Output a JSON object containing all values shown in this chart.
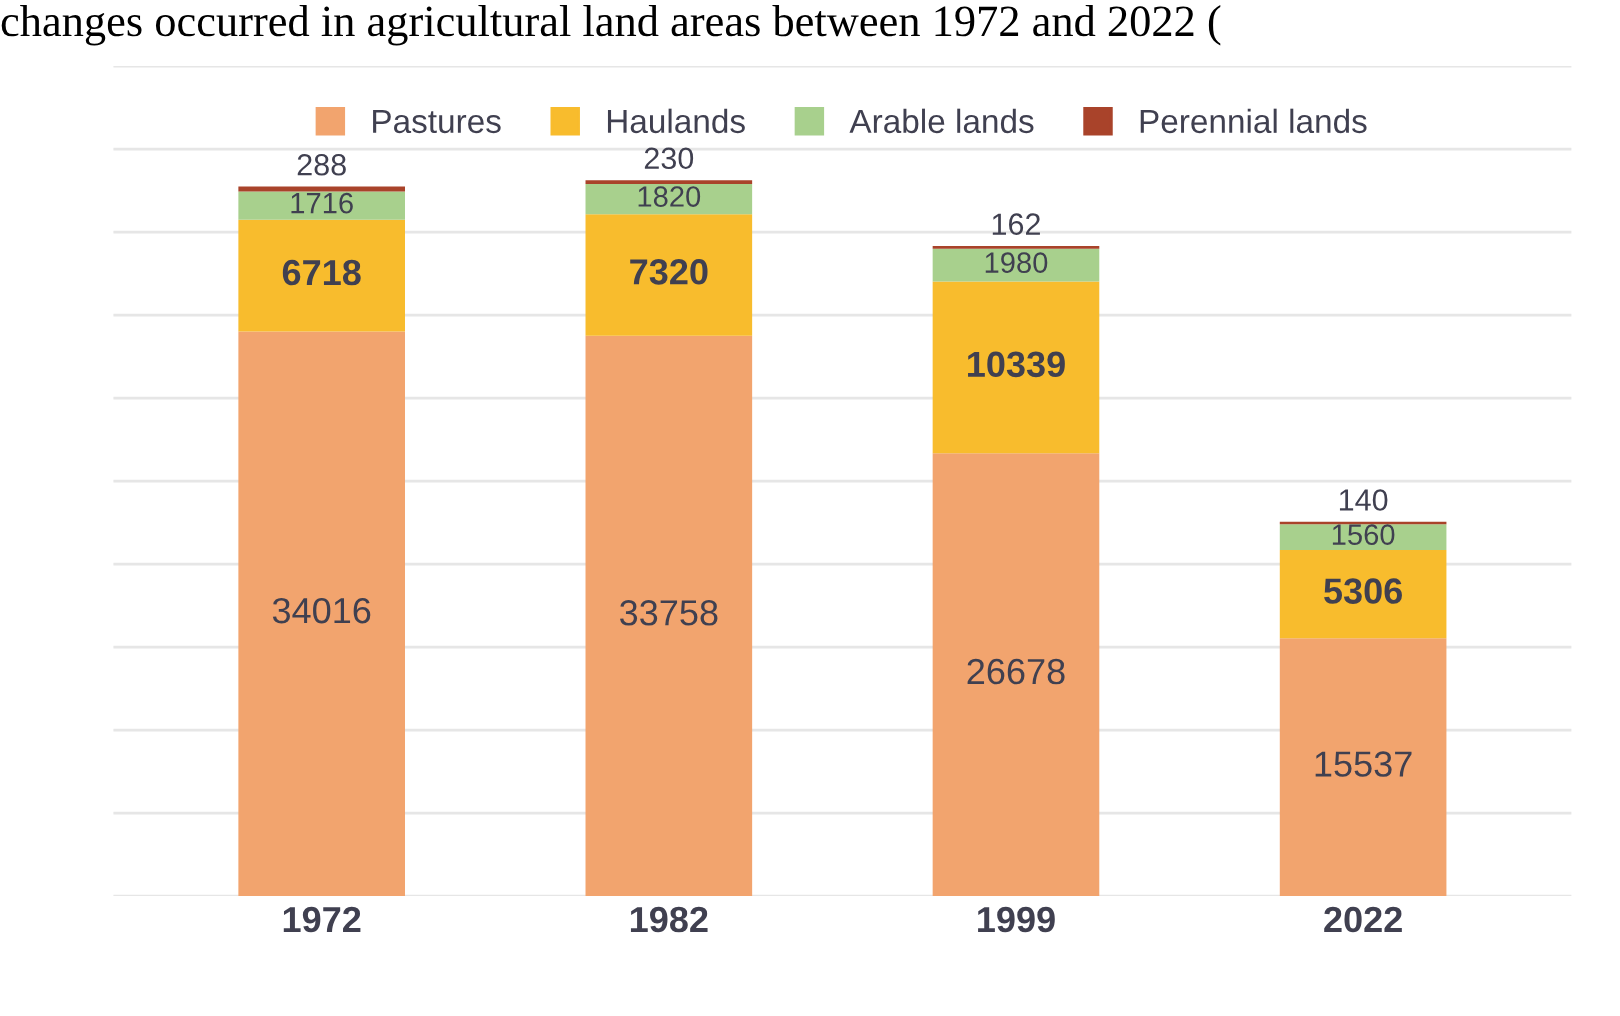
{
  "chart_data": {
    "type": "bar",
    "stacked": true,
    "title": "changes occurred in agricultural land areas between 1972 and 2022 (",
    "categories": [
      "1972",
      "1982",
      "1999",
      "2022"
    ],
    "series": [
      {
        "name": "Pastures",
        "color": "#f2a46e",
        "values": [
          34016,
          33758,
          26678,
          15537
        ]
      },
      {
        "name": "Haulands",
        "color": "#f8bc2d",
        "values": [
          6718,
          7320,
          10339,
          5306
        ]
      },
      {
        "name": "Arable lands",
        "color": "#a8d08d",
        "values": [
          1716,
          1820,
          1980,
          1560
        ]
      },
      {
        "name": "Perennial lands",
        "color": "#a9432a",
        "values": [
          288,
          230,
          162,
          140
        ]
      }
    ],
    "ylim": [
      0,
      50000
    ],
    "yticks": [
      {
        "value": 0,
        "label": null
      },
      {
        "value": 5000,
        "label": null
      },
      {
        "value": 10000,
        "label": null
      },
      {
        "value": 15000,
        "label": null
      },
      {
        "value": 20000,
        "label": null
      },
      {
        "value": 25000,
        "label": null
      },
      {
        "value": 30000,
        "label": null
      },
      {
        "value": 35000,
        "label": null
      },
      {
        "value": 40000,
        "label": null
      },
      {
        "value": 45000,
        "label": null
      },
      {
        "value": 50000,
        "label": null
      }
    ],
    "grid": "y",
    "legend": "top",
    "tick_labels": "x",
    "data_labels": true
  }
}
